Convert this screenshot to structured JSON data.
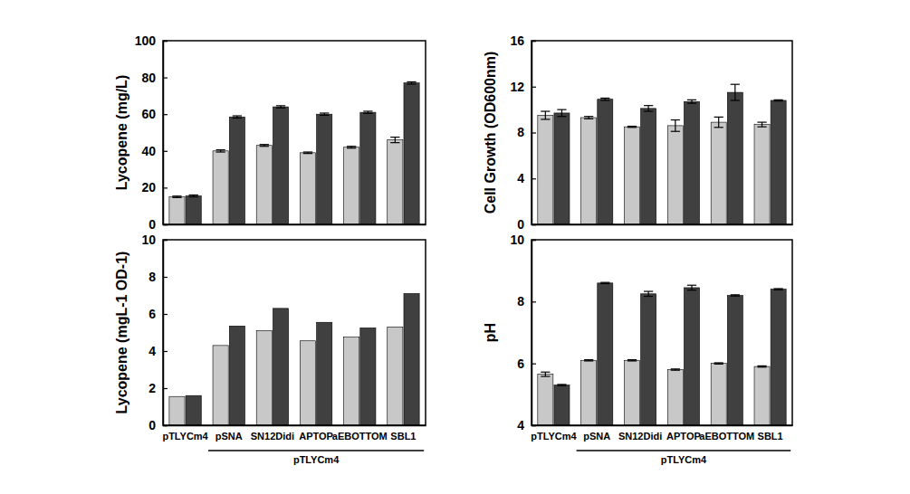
{
  "chart_data": [
    {
      "type": "bar",
      "y_label": "Lycopene (mg/L)",
      "categories": [
        null,
        null,
        null,
        null,
        null,
        null
      ],
      "series": [
        {
          "color": "#c8c8c8",
          "values": [
            15,
            40,
            43,
            39,
            42,
            46
          ],
          "errors": [
            0.4,
            0.6,
            0.5,
            0.4,
            0.5,
            1.5
          ]
        },
        {
          "color": "#404040",
          "values": [
            15.5,
            58.5,
            64,
            60,
            61,
            77
          ],
          "errors": [
            0.5,
            0.6,
            0.6,
            0.6,
            0.6,
            0.6
          ]
        }
      ],
      "ylim": [
        0,
        100
      ],
      "yticks": [
        0,
        20,
        40,
        60,
        80,
        100
      ],
      "tick_labels": "y"
    },
    {
      "type": "bar",
      "y_label": "Cell Growth (OD600nm)",
      "categories": [
        null,
        null,
        null,
        null,
        null,
        null
      ],
      "series": [
        {
          "color": "#c8c8c8",
          "values": [
            9.5,
            9.3,
            8.5,
            8.6,
            8.9,
            8.7
          ],
          "errors": [
            0.35,
            0.1,
            0.05,
            0.5,
            0.45,
            0.2
          ]
        },
        {
          "color": "#404040",
          "values": [
            9.7,
            10.9,
            10.1,
            10.7,
            11.5,
            10.8
          ],
          "errors": [
            0.3,
            0.1,
            0.25,
            0.15,
            0.7,
            0.05
          ]
        }
      ],
      "ylim": [
        0,
        16
      ],
      "yticks": [
        0,
        4,
        8,
        12,
        16
      ],
      "tick_labels": "y"
    },
    {
      "type": "bar",
      "y_label": "Lycopene (mgL-1 OD-1)",
      "categories": [
        "pTLYCm4",
        "pSNA",
        "SN12Didi",
        "APTOP",
        "aEBOTTOM",
        "SBL1"
      ],
      "group_label": "pTLYCm4",
      "series": [
        {
          "color": "#c8c8c8",
          "values": [
            1.55,
            4.3,
            5.1,
            4.55,
            4.75,
            5.3
          ]
        },
        {
          "color": "#404040",
          "values": [
            1.6,
            5.35,
            6.3,
            5.55,
            5.25,
            7.1
          ]
        }
      ],
      "ylim": [
        0,
        10
      ],
      "yticks": [
        0,
        2,
        4,
        6,
        8,
        10
      ]
    },
    {
      "type": "bar",
      "y_label": "pH",
      "categories": [
        "pTLYCm4",
        "pSNA",
        "SN12Didi",
        "APTOP",
        "aEBOTTOM",
        "SBL1"
      ],
      "group_label": "pTLYCm4",
      "series": [
        {
          "color": "#c8c8c8",
          "values": [
            5.65,
            6.1,
            6.1,
            5.8,
            6.0,
            5.9
          ],
          "errors": [
            0.07,
            0.02,
            0.02,
            0.02,
            0.02,
            0.02
          ]
        },
        {
          "color": "#404040",
          "values": [
            5.3,
            8.6,
            8.25,
            8.45,
            8.2,
            8.4
          ],
          "errors": [
            0.02,
            0.02,
            0.08,
            0.08,
            0.02,
            0.02
          ]
        }
      ],
      "ylim": [
        4,
        10
      ],
      "yticks": [
        4,
        6,
        8,
        10
      ]
    }
  ]
}
